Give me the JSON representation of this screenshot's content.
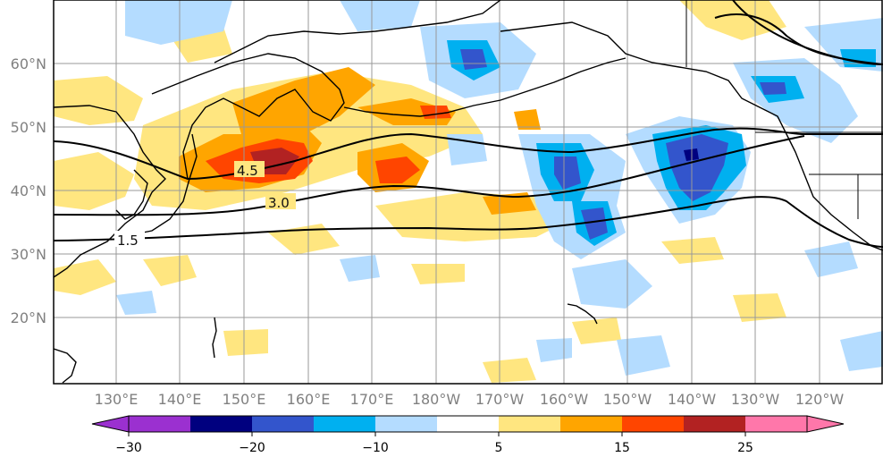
{
  "map": {
    "lat_labels": [
      "60°N",
      "50°N",
      "40°N",
      "30°N",
      "20°N"
    ],
    "lon_labels": [
      "130°E",
      "140°E",
      "150°E",
      "160°E",
      "170°E",
      "180°W",
      "170°W",
      "160°W",
      "150°W",
      "140°W",
      "130°W",
      "120°W"
    ],
    "contour_labels": [
      "4.5",
      "3.0",
      "1.5"
    ]
  },
  "colorbar": {
    "tick_labels": [
      "−30",
      "−20",
      "−10",
      "5",
      "15",
      "25"
    ],
    "colors": [
      "#9b30d0",
      "#00007f",
      "#3355cc",
      "#00b0f0",
      "#b4dcff",
      "#ffffff",
      "#ffe680",
      "#ffa500",
      "#ff4500",
      "#b22222",
      "#ff77aa"
    ]
  },
  "palette": {
    "light_blue": "#b4dcff",
    "cyan": "#00b0f0",
    "blue": "#3355cc",
    "navy": "#00007f",
    "yellow": "#ffe680",
    "orange": "#ffa500",
    "red": "#ff4500",
    "darkred": "#b22222"
  }
}
